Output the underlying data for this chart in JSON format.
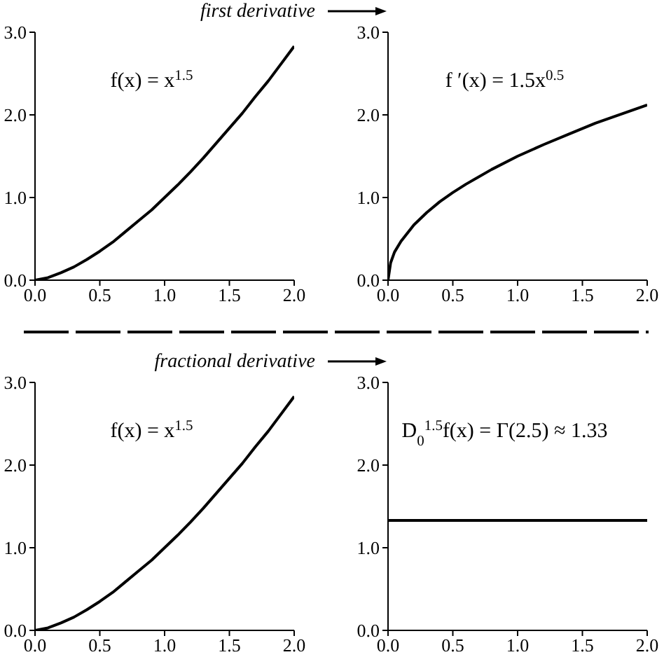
{
  "chart_data": [
    {
      "type": "line",
      "annotations": [
        "f(x) = x$^{1.5}$",
        "first derivative"
      ],
      "x": [
        0,
        0.1,
        0.2,
        0.3,
        0.4,
        0.5,
        0.6,
        0.7,
        0.8,
        0.9,
        1.0,
        1.1,
        1.2,
        1.3,
        1.4,
        1.5,
        1.6,
        1.7,
        1.8,
        1.9,
        2.0
      ],
      "series": [
        {
          "color": "#000000",
          "values": [
            0,
            0.03,
            0.09,
            0.16,
            0.25,
            0.35,
            0.46,
            0.59,
            0.72,
            0.85,
            1.0,
            1.15,
            1.31,
            1.48,
            1.66,
            1.84,
            2.02,
            2.22,
            2.41,
            2.62,
            2.83
          ]
        }
      ],
      "xlim": [
        0,
        2
      ],
      "ylim": [
        0,
        3
      ],
      "xticks": [
        {
          "value": 0,
          "label": "0.0"
        },
        {
          "value": 0.5,
          "label": "0.5"
        },
        {
          "value": 1,
          "label": "1.0"
        },
        {
          "value": 1.5,
          "label": "1.5"
        },
        {
          "value": 2,
          "label": "2.0"
        }
      ],
      "yticks": [
        {
          "value": 0,
          "label": "0.0"
        },
        {
          "value": 1,
          "label": "1.0"
        },
        {
          "value": 2,
          "label": "2.0"
        },
        {
          "value": 3,
          "label": "3.0"
        }
      ],
      "grid": false,
      "legend": false,
      "marker": "none",
      "line_style": "solid"
    },
    {
      "type": "line",
      "annotations": [
        "f ′(x) = 1.5x$^{0.5}$"
      ],
      "x": [
        0,
        0.02,
        0.05,
        0.1,
        0.2,
        0.3,
        0.4,
        0.5,
        0.6,
        0.8,
        1.0,
        1.2,
        1.4,
        1.6,
        1.8,
        2.0
      ],
      "series": [
        {
          "color": "#000000",
          "values": [
            0,
            0.21,
            0.34,
            0.47,
            0.67,
            0.82,
            0.95,
            1.06,
            1.16,
            1.34,
            1.5,
            1.64,
            1.77,
            1.9,
            2.01,
            2.12
          ]
        }
      ],
      "xlim": [
        0,
        2
      ],
      "ylim": [
        0,
        3
      ],
      "xticks": [
        {
          "value": 0,
          "label": "0.0"
        },
        {
          "value": 0.5,
          "label": "0.5"
        },
        {
          "value": 1,
          "label": "1.0"
        },
        {
          "value": 1.5,
          "label": "1.5"
        },
        {
          "value": 2,
          "label": "2.0"
        }
      ],
      "yticks": [
        {
          "value": 0,
          "label": "0.0"
        },
        {
          "value": 1,
          "label": "1.0"
        },
        {
          "value": 2,
          "label": "2.0"
        },
        {
          "value": 3,
          "label": "3.0"
        }
      ],
      "grid": false,
      "legend": false,
      "marker": "none",
      "line_style": "solid"
    },
    {
      "type": "line",
      "annotations": [
        "f(x) = x$^{1.5}$",
        "fractional derivative"
      ],
      "x": [
        0,
        0.1,
        0.2,
        0.3,
        0.4,
        0.5,
        0.6,
        0.7,
        0.8,
        0.9,
        1.0,
        1.1,
        1.2,
        1.3,
        1.4,
        1.5,
        1.6,
        1.7,
        1.8,
        1.9,
        2.0
      ],
      "series": [
        {
          "color": "#000000",
          "values": [
            0,
            0.03,
            0.09,
            0.16,
            0.25,
            0.35,
            0.46,
            0.59,
            0.72,
            0.85,
            1.0,
            1.15,
            1.31,
            1.48,
            1.66,
            1.84,
            2.02,
            2.22,
            2.41,
            2.62,
            2.83
          ]
        }
      ],
      "xlim": [
        0,
        2
      ],
      "ylim": [
        0,
        3
      ],
      "xticks": [
        {
          "value": 0,
          "label": "0.0"
        },
        {
          "value": 0.5,
          "label": "0.5"
        },
        {
          "value": 1,
          "label": "1.0"
        },
        {
          "value": 1.5,
          "label": "1.5"
        },
        {
          "value": 2,
          "label": "2.0"
        }
      ],
      "yticks": [
        {
          "value": 0,
          "label": "0.0"
        },
        {
          "value": 1,
          "label": "1.0"
        },
        {
          "value": 2,
          "label": "2.0"
        },
        {
          "value": 3,
          "label": "3.0"
        }
      ],
      "grid": false,
      "legend": false,
      "marker": "none",
      "line_style": "solid"
    },
    {
      "type": "line",
      "annotations": [
        "D$_{0}$$^{1.5}$f(x) = Γ(2.5) ≈ 1.33"
      ],
      "x": [
        0,
        2
      ],
      "series": [
        {
          "color": "#000000",
          "values": [
            1.33,
            1.33
          ]
        }
      ],
      "xlim": [
        0,
        2
      ],
      "ylim": [
        0,
        3
      ],
      "xticks": [
        {
          "value": 0,
          "label": "0.0"
        },
        {
          "value": 0.5,
          "label": "0.5"
        },
        {
          "value": 1,
          "label": "1.0"
        },
        {
          "value": 1.5,
          "label": "1.5"
        },
        {
          "value": 2,
          "label": "2.0"
        }
      ],
      "yticks": [
        {
          "value": 0,
          "label": "0.0"
        },
        {
          "value": 1,
          "label": "1.0"
        },
        {
          "value": 2,
          "label": "2.0"
        },
        {
          "value": 3,
          "label": "3.0"
        }
      ],
      "grid": false,
      "legend": false,
      "marker": "none",
      "line_style": "solid"
    }
  ]
}
